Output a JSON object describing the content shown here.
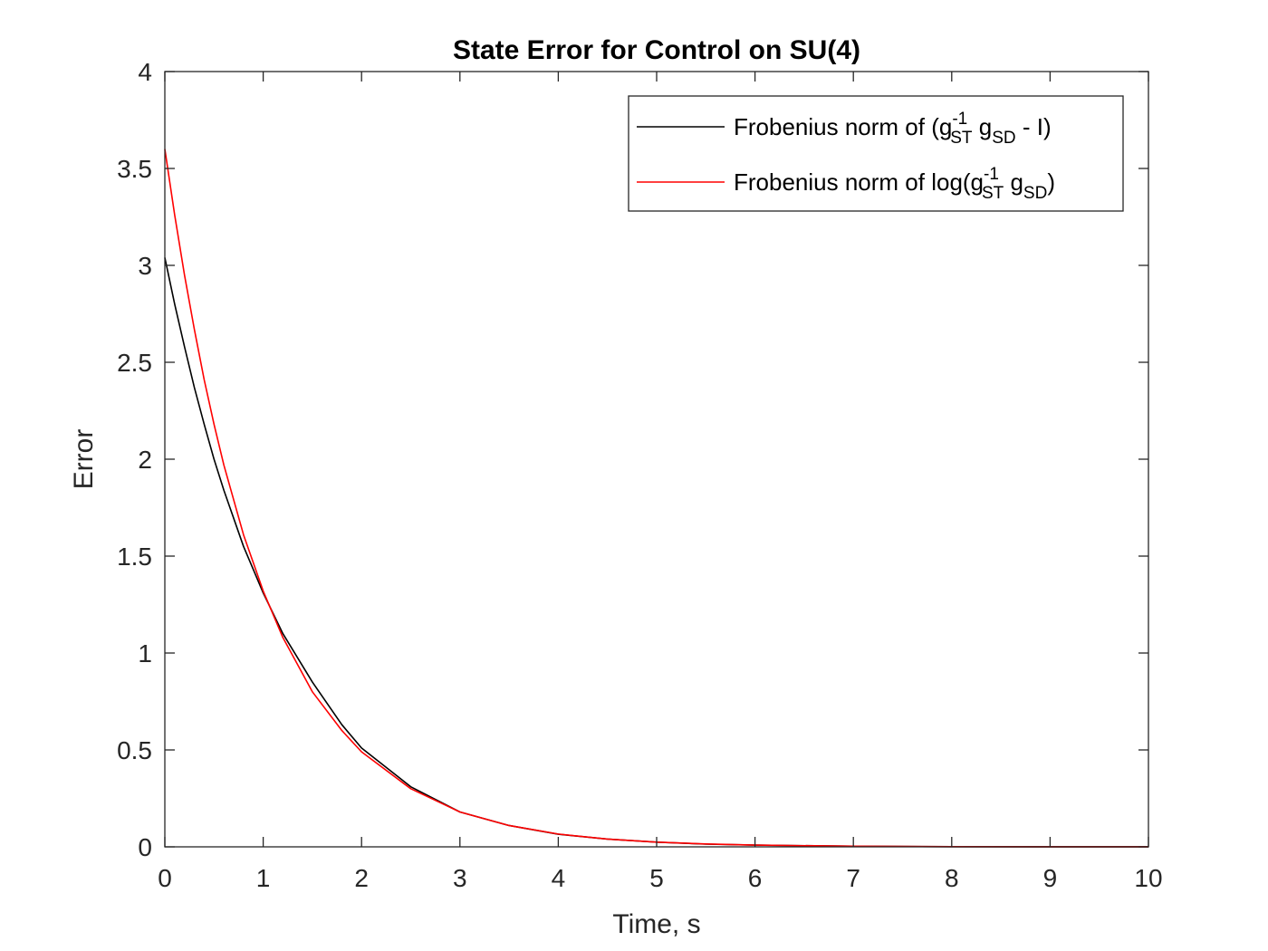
{
  "chart_data": {
    "type": "line",
    "title": "State Error for Control on SU(4)",
    "xlabel": "Time, s",
    "ylabel": "Error",
    "xlim": [
      0,
      10
    ],
    "ylim": [
      0,
      4
    ],
    "xticks": [
      0,
      1,
      2,
      3,
      4,
      5,
      6,
      7,
      8,
      9,
      10
    ],
    "yticks": [
      0,
      0.5,
      1,
      1.5,
      2,
      2.5,
      3,
      3.5,
      4
    ],
    "xtick_labels": [
      "0",
      "1",
      "2",
      "3",
      "4",
      "5",
      "6",
      "7",
      "8",
      "9",
      "10"
    ],
    "ytick_labels": [
      "0",
      "0.5",
      "1",
      "1.5",
      "2",
      "2.5",
      "3",
      "3.5",
      "4"
    ],
    "grid": false,
    "legend_position": "top-right",
    "series": [
      {
        "name": "Frobenius norm of (g-1ST gSD - I)",
        "legend": {
          "base1": "Frobenius norm of (g",
          "sup": "-1",
          "sub1": "ST",
          "base2": " g",
          "sub2": "SD",
          "base3": " - I)"
        },
        "color": "#000000",
        "x": [
          0,
          0.1,
          0.2,
          0.3,
          0.4,
          0.5,
          0.6,
          0.8,
          1.0,
          1.2,
          1.5,
          1.8,
          2.0,
          2.5,
          3.0,
          3.5,
          4.0,
          4.5,
          5.0,
          5.5,
          6.0,
          7.0,
          8.0,
          9.0,
          10.0
        ],
        "y": [
          3.04,
          2.8,
          2.58,
          2.37,
          2.18,
          2.0,
          1.84,
          1.55,
          1.31,
          1.1,
          0.85,
          0.63,
          0.51,
          0.31,
          0.18,
          0.11,
          0.065,
          0.04,
          0.024,
          0.014,
          0.009,
          0.003,
          0.001,
          0.0004,
          0.0001
        ]
      },
      {
        "name": "Frobenius norm of log(g-1ST gSD)",
        "legend": {
          "base1": "Frobenius norm of log(g",
          "sup": "-1",
          "sub1": "ST",
          "base2": " g",
          "sub2": "SD",
          "base3": ")"
        },
        "color": "#ff0000",
        "x": [
          0,
          0.1,
          0.2,
          0.3,
          0.4,
          0.5,
          0.6,
          0.8,
          1.0,
          1.2,
          1.5,
          1.8,
          2.0,
          2.5,
          3.0,
          3.5,
          4.0,
          4.5,
          5.0,
          5.5,
          6.0,
          7.0,
          8.0,
          9.0,
          10.0
        ],
        "y": [
          3.6,
          3.26,
          2.95,
          2.67,
          2.41,
          2.18,
          1.97,
          1.61,
          1.32,
          1.08,
          0.8,
          0.6,
          0.49,
          0.3,
          0.18,
          0.11,
          0.066,
          0.04,
          0.024,
          0.015,
          0.009,
          0.003,
          0.001,
          0.0004,
          0.0001
        ]
      }
    ]
  }
}
